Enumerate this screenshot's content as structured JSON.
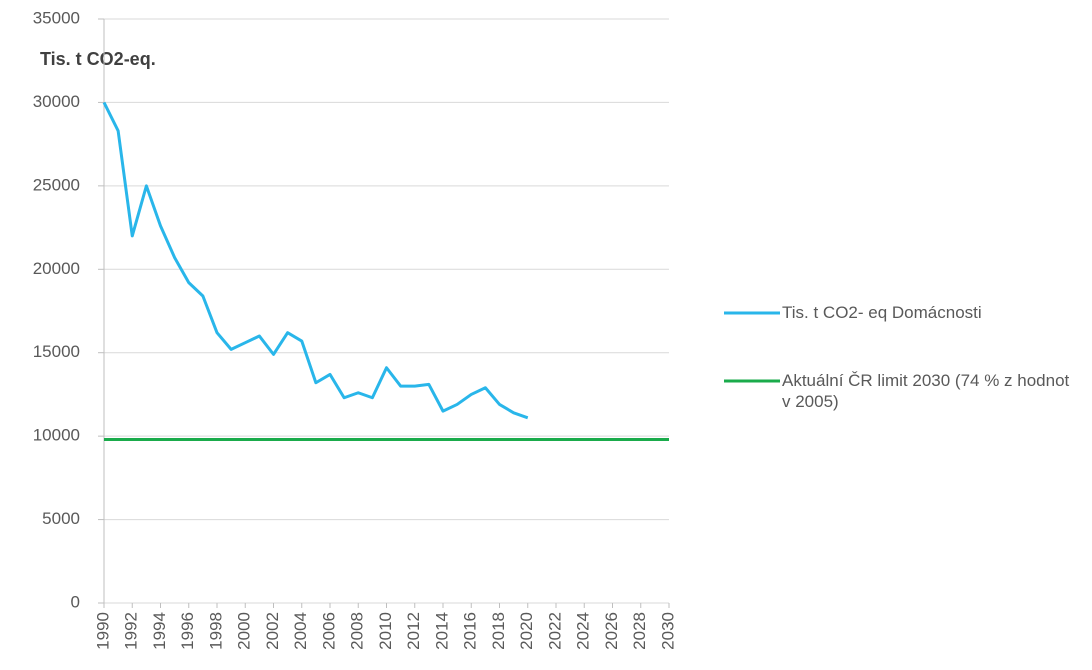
{
  "chart_data": {
    "type": "line",
    "title": "Tis. t CO2-eq.",
    "x": [
      1990,
      1991,
      1992,
      1993,
      1994,
      1995,
      1996,
      1997,
      1998,
      1999,
      2000,
      2001,
      2002,
      2003,
      2004,
      2005,
      2006,
      2007,
      2008,
      2009,
      2010,
      2011,
      2012,
      2013,
      2014,
      2015,
      2016,
      2017,
      2018,
      2019,
      2020,
      2021,
      2022,
      2023,
      2024,
      2025,
      2026,
      2027,
      2028,
      2029,
      2030
    ],
    "xlim": [
      1990,
      2030
    ],
    "xticks": [
      1990,
      1992,
      1994,
      1996,
      1998,
      2000,
      2002,
      2004,
      2006,
      2008,
      2010,
      2012,
      2014,
      2016,
      2018,
      2020,
      2022,
      2024,
      2026,
      2028,
      2030
    ],
    "ylim": [
      0,
      35000
    ],
    "yticks": [
      0,
      5000,
      10000,
      15000,
      20000,
      25000,
      30000,
      35000
    ],
    "grid": true,
    "legend": "right",
    "series": [
      {
        "name": "Tis. t CO2- eq Domácnosti",
        "color": "#29b6ea",
        "values": [
          30000,
          28300,
          22000,
          25000,
          22600,
          20700,
          19200,
          18400,
          16200,
          15200,
          15600,
          16000,
          14900,
          16200,
          15700,
          13200,
          13700,
          12300,
          12600,
          12300,
          14100,
          13000,
          13000,
          13100,
          11500,
          11900,
          12500,
          12900,
          11900,
          11400,
          11100,
          null,
          null,
          null,
          null,
          null,
          null,
          null,
          null,
          null,
          null
        ]
      },
      {
        "name": "Aktuální ČR limit 2030 (74 % z hodnot v 2005)",
        "color": "#1aab4b",
        "values": [
          9800,
          9800,
          9800,
          9800,
          9800,
          9800,
          9800,
          9800,
          9800,
          9800,
          9800,
          9800,
          9800,
          9800,
          9800,
          9800,
          9800,
          9800,
          9800,
          9800,
          9800,
          9800,
          9800,
          9800,
          9800,
          9800,
          9800,
          9800,
          9800,
          9800,
          9800,
          9800,
          9800,
          9800,
          9800,
          9800,
          9800,
          9800,
          9800,
          9800,
          9800
        ]
      }
    ]
  }
}
